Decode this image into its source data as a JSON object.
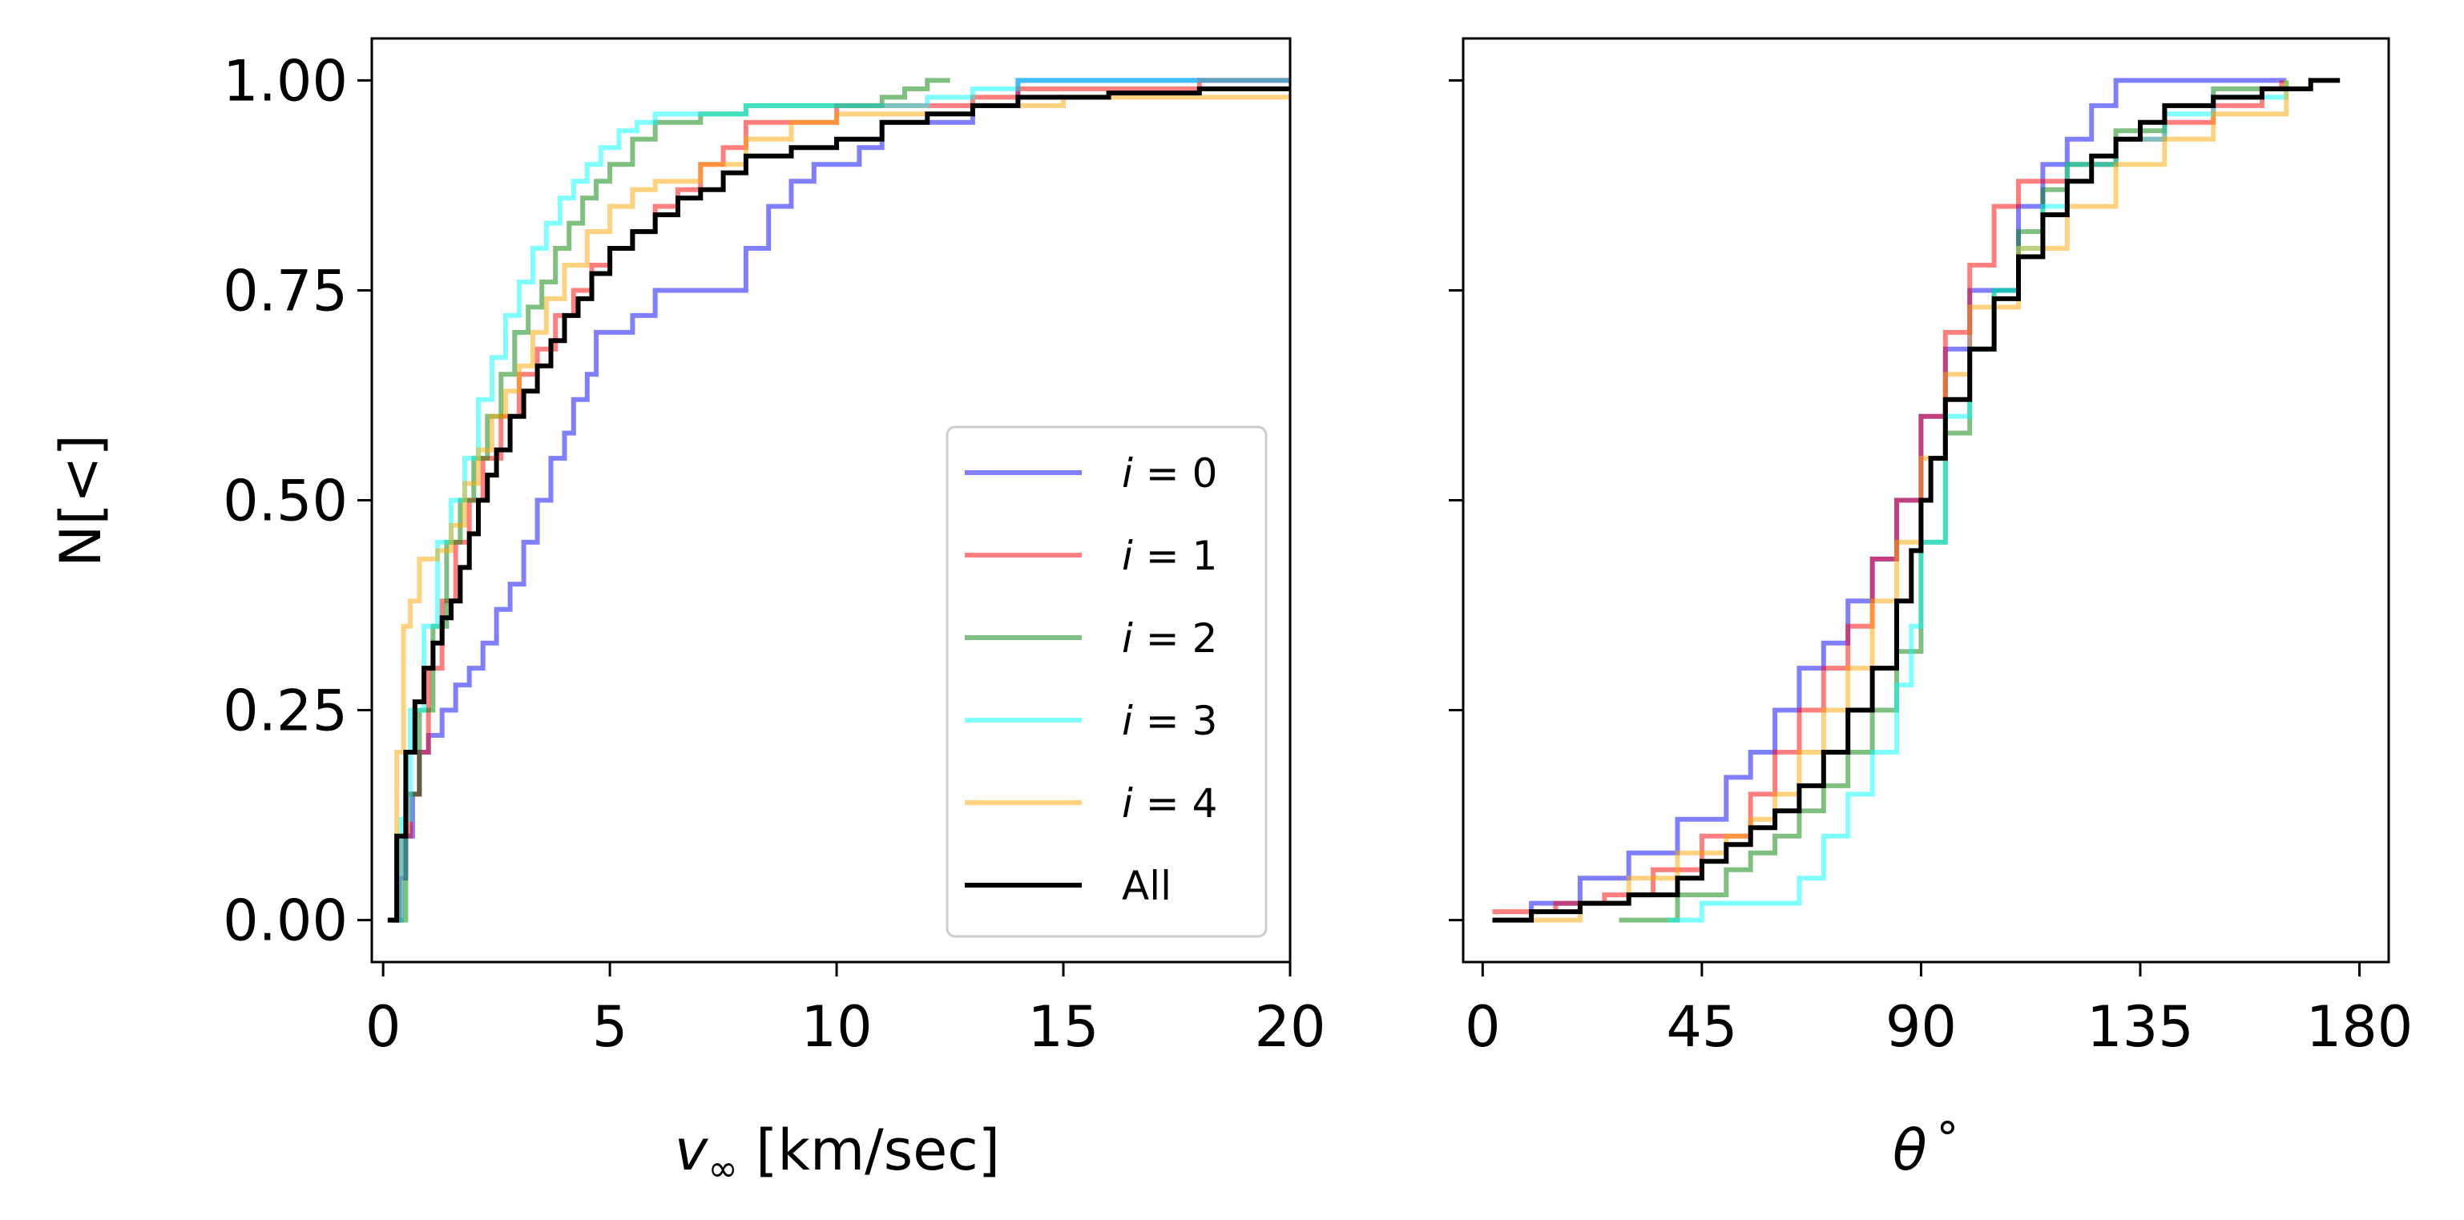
{
  "chart_data": [
    {
      "type": "line",
      "step": true,
      "panel": "left",
      "xlabel_var": "v",
      "xlabel_sub": "∞",
      "xlabel_unit": " [km/sec]",
      "ylabel": "N[<]",
      "xlim": [
        0,
        20
      ],
      "ylim": [
        0,
        1
      ],
      "xticks": [
        0,
        5,
        10,
        15,
        20
      ],
      "xtick_labels": [
        "0",
        "5",
        "10",
        "15",
        "20"
      ],
      "yticks": [
        0,
        0.25,
        0.5,
        0.75,
        1.0
      ],
      "ytick_labels": [
        "0.00",
        "0.25",
        "0.50",
        "0.75",
        "1.00"
      ],
      "legend": {
        "placement": "lower-right"
      },
      "series": [
        {
          "name": "i = 0",
          "label_var": "i",
          "label_eq": " = 0",
          "color": "#0000ff",
          "opacity": 0.5,
          "x": [
            0.2,
            0.35,
            0.5,
            0.65,
            0.8,
            1.0,
            1.3,
            1.6,
            1.9,
            2.2,
            2.5,
            2.8,
            3.1,
            3.4,
            3.7,
            4.0,
            4.2,
            4.5,
            4.7,
            5.0,
            5.5,
            6.0,
            7.0,
            8.0,
            8.5,
            9.0,
            9.5,
            10.0,
            10.5,
            11.0,
            12.0,
            13.0,
            14.0,
            18.0,
            20.0
          ],
          "y": [
            0.0,
            0.05,
            0.1,
            0.15,
            0.2,
            0.22,
            0.25,
            0.28,
            0.3,
            0.33,
            0.37,
            0.4,
            0.45,
            0.5,
            0.55,
            0.58,
            0.62,
            0.65,
            0.7,
            0.7,
            0.72,
            0.75,
            0.75,
            0.8,
            0.85,
            0.88,
            0.9,
            0.9,
            0.92,
            0.95,
            0.95,
            0.97,
            1.0,
            1.0,
            1.0
          ]
        },
        {
          "name": "i = 1",
          "label_var": "i",
          "label_eq": " = 1",
          "color": "#ff0000",
          "opacity": 0.5,
          "x": [
            0.2,
            0.4,
            0.6,
            0.8,
            1.0,
            1.3,
            1.6,
            1.9,
            2.2,
            2.6,
            3.0,
            3.4,
            3.8,
            4.2,
            4.6,
            5.0,
            5.5,
            6.0,
            6.5,
            7.0,
            7.5,
            8.0,
            10.0,
            12.0,
            13.0,
            14.0,
            18.0,
            20.0
          ],
          "y": [
            0.0,
            0.1,
            0.15,
            0.2,
            0.3,
            0.38,
            0.45,
            0.5,
            0.55,
            0.6,
            0.65,
            0.68,
            0.72,
            0.75,
            0.78,
            0.8,
            0.82,
            0.85,
            0.87,
            0.9,
            0.92,
            0.95,
            0.97,
            0.97,
            0.98,
            0.99,
            1.0,
            1.0
          ]
        },
        {
          "name": "i = 2",
          "label_var": "i",
          "label_eq": " = 2",
          "color": "#008000",
          "opacity": 0.5,
          "x": [
            0.2,
            0.5,
            0.8,
            1.1,
            1.4,
            1.7,
            2.0,
            2.3,
            2.6,
            2.9,
            3.2,
            3.5,
            3.8,
            4.1,
            4.4,
            4.7,
            5.0,
            5.5,
            6.0,
            7.0,
            8.0,
            10.0,
            11.0,
            11.5,
            12.0,
            12.5
          ],
          "y": [
            0.0,
            0.15,
            0.25,
            0.35,
            0.45,
            0.5,
            0.55,
            0.6,
            0.65,
            0.7,
            0.73,
            0.76,
            0.8,
            0.83,
            0.86,
            0.88,
            0.9,
            0.93,
            0.95,
            0.96,
            0.97,
            0.97,
            0.98,
            0.99,
            1.0,
            1.0
          ]
        },
        {
          "name": "i = 3",
          "label_var": "i",
          "label_eq": " = 3",
          "color": "#00ffff",
          "opacity": 0.5,
          "x": [
            0.2,
            0.4,
            0.6,
            0.9,
            1.2,
            1.5,
            1.8,
            2.1,
            2.4,
            2.7,
            3.0,
            3.3,
            3.6,
            3.9,
            4.2,
            4.5,
            4.8,
            5.2,
            5.6,
            6.0,
            7.0,
            8.0,
            10.0,
            12.0,
            13.0,
            14.0,
            20.0
          ],
          "y": [
            0.0,
            0.12,
            0.25,
            0.35,
            0.45,
            0.5,
            0.55,
            0.62,
            0.67,
            0.72,
            0.76,
            0.8,
            0.83,
            0.86,
            0.88,
            0.9,
            0.92,
            0.94,
            0.95,
            0.96,
            0.96,
            0.97,
            0.97,
            0.98,
            0.99,
            1.0,
            1.0
          ]
        },
        {
          "name": "i = 4",
          "label_var": "i",
          "label_eq": " = 4",
          "color": "#ffa500",
          "opacity": 0.5,
          "x": [
            0.15,
            0.3,
            0.45,
            0.6,
            0.8,
            1.0,
            1.2,
            1.5,
            1.8,
            2.1,
            2.4,
            2.7,
            3.0,
            3.3,
            3.6,
            4.0,
            4.5,
            5.0,
            5.5,
            6.0,
            7.0,
            8.0,
            9.0,
            10.0,
            13.0,
            15.0,
            20.0
          ],
          "y": [
            0.0,
            0.2,
            0.35,
            0.38,
            0.43,
            0.43,
            0.44,
            0.47,
            0.52,
            0.56,
            0.6,
            0.63,
            0.66,
            0.7,
            0.74,
            0.78,
            0.82,
            0.85,
            0.87,
            0.88,
            0.9,
            0.93,
            0.95,
            0.96,
            0.97,
            0.98,
            0.98
          ]
        },
        {
          "name": "All",
          "label_var": "",
          "label_eq": "All",
          "color": "#000000",
          "opacity": 1.0,
          "x": [
            0.1,
            0.3,
            0.5,
            0.7,
            0.9,
            1.1,
            1.3,
            1.5,
            1.7,
            1.9,
            2.1,
            2.3,
            2.5,
            2.8,
            3.1,
            3.4,
            3.7,
            4.0,
            4.3,
            4.6,
            5.0,
            5.5,
            6.0,
            6.5,
            7.0,
            7.5,
            8.0,
            9.0,
            10.0,
            11.0,
            12.0,
            13.0,
            14.0,
            16.0,
            18.0,
            20.0
          ],
          "y": [
            0.0,
            0.1,
            0.2,
            0.26,
            0.3,
            0.33,
            0.36,
            0.38,
            0.42,
            0.46,
            0.5,
            0.53,
            0.56,
            0.6,
            0.63,
            0.66,
            0.69,
            0.72,
            0.74,
            0.77,
            0.8,
            0.82,
            0.84,
            0.86,
            0.87,
            0.89,
            0.91,
            0.92,
            0.93,
            0.95,
            0.96,
            0.97,
            0.98,
            0.985,
            0.99,
            0.99
          ]
        }
      ]
    },
    {
      "type": "line",
      "step": true,
      "panel": "right",
      "xlabel_var": "θ",
      "xlabel_unit": "°",
      "xlim": [
        -4,
        186
      ],
      "ylim": [
        0,
        1
      ],
      "xticks": [
        0,
        45,
        90,
        135,
        180
      ],
      "xtick_labels": [
        "0",
        "45",
        "90",
        "135",
        "180"
      ],
      "yticks": [
        0,
        0.25,
        0.5,
        0.75,
        1.0
      ],
      "series": [
        {
          "name": "i = 0",
          "color": "#0000ff",
          "opacity": 0.5,
          "x": [
            2,
            10,
            20,
            30,
            40,
            50,
            55,
            60,
            65,
            70,
            75,
            80,
            85,
            90,
            95,
            100,
            110,
            115,
            120,
            125,
            130,
            145,
            165
          ],
          "y": [
            0.0,
            0.02,
            0.05,
            0.08,
            0.12,
            0.17,
            0.2,
            0.25,
            0.3,
            0.33,
            0.38,
            0.43,
            0.5,
            0.6,
            0.68,
            0.75,
            0.85,
            0.9,
            0.93,
            0.97,
            1.0,
            1.0,
            1.0
          ]
        },
        {
          "name": "i = 1",
          "color": "#ff0000",
          "opacity": 0.5,
          "x": [
            2,
            15,
            25,
            35,
            45,
            55,
            60,
            65,
            70,
            75,
            80,
            85,
            90,
            95,
            100,
            105,
            110,
            120,
            130,
            140,
            150,
            160,
            164
          ],
          "y": [
            0.01,
            0.02,
            0.03,
            0.06,
            0.1,
            0.15,
            0.2,
            0.25,
            0.3,
            0.35,
            0.43,
            0.5,
            0.6,
            0.7,
            0.78,
            0.85,
            0.88,
            0.9,
            0.93,
            0.95,
            0.97,
            0.99,
            1.0
          ]
        },
        {
          "name": "i = 2",
          "color": "#008000",
          "opacity": 0.5,
          "x": [
            28,
            40,
            50,
            55,
            60,
            65,
            70,
            75,
            80,
            85,
            90,
            95,
            100,
            105,
            110,
            115,
            120,
            130,
            140,
            150,
            165
          ],
          "y": [
            0.0,
            0.03,
            0.06,
            0.08,
            0.1,
            0.13,
            0.16,
            0.2,
            0.25,
            0.32,
            0.45,
            0.58,
            0.68,
            0.75,
            0.82,
            0.87,
            0.9,
            0.94,
            0.97,
            0.99,
            1.0
          ]
        },
        {
          "name": "i = 3",
          "color": "#00ffff",
          "opacity": 0.5,
          "x": [
            38,
            45,
            55,
            65,
            70,
            75,
            80,
            85,
            88,
            90,
            95,
            100,
            105,
            110,
            115,
            120,
            130,
            140,
            150,
            165
          ],
          "y": [
            0.0,
            0.02,
            0.02,
            0.05,
            0.1,
            0.15,
            0.2,
            0.28,
            0.35,
            0.45,
            0.6,
            0.68,
            0.75,
            0.8,
            0.85,
            0.9,
            0.93,
            0.96,
            0.98,
            1.0
          ]
        },
        {
          "name": "i = 4",
          "color": "#ffa500",
          "opacity": 0.5,
          "x": [
            2,
            20,
            30,
            40,
            50,
            55,
            60,
            65,
            70,
            75,
            80,
            85,
            90,
            95,
            100,
            110,
            120,
            130,
            140,
            150,
            165
          ],
          "y": [
            0.0,
            0.02,
            0.05,
            0.08,
            0.1,
            0.12,
            0.15,
            0.2,
            0.25,
            0.3,
            0.38,
            0.45,
            0.55,
            0.65,
            0.73,
            0.8,
            0.85,
            0.9,
            0.93,
            0.96,
            1.0
          ]
        },
        {
          "name": "All",
          "color": "#000000",
          "opacity": 1.0,
          "x": [
            2,
            10,
            20,
            30,
            40,
            45,
            50,
            55,
            60,
            65,
            70,
            75,
            80,
            85,
            88,
            90,
            92,
            95,
            100,
            105,
            110,
            115,
            120,
            125,
            130,
            135,
            140,
            150,
            160,
            170,
            176
          ],
          "y": [
            0.0,
            0.01,
            0.02,
            0.03,
            0.05,
            0.07,
            0.09,
            0.11,
            0.13,
            0.16,
            0.2,
            0.25,
            0.3,
            0.38,
            0.44,
            0.5,
            0.55,
            0.62,
            0.68,
            0.74,
            0.79,
            0.84,
            0.88,
            0.91,
            0.93,
            0.95,
            0.97,
            0.98,
            0.99,
            1.0,
            1.0
          ]
        }
      ]
    }
  ]
}
